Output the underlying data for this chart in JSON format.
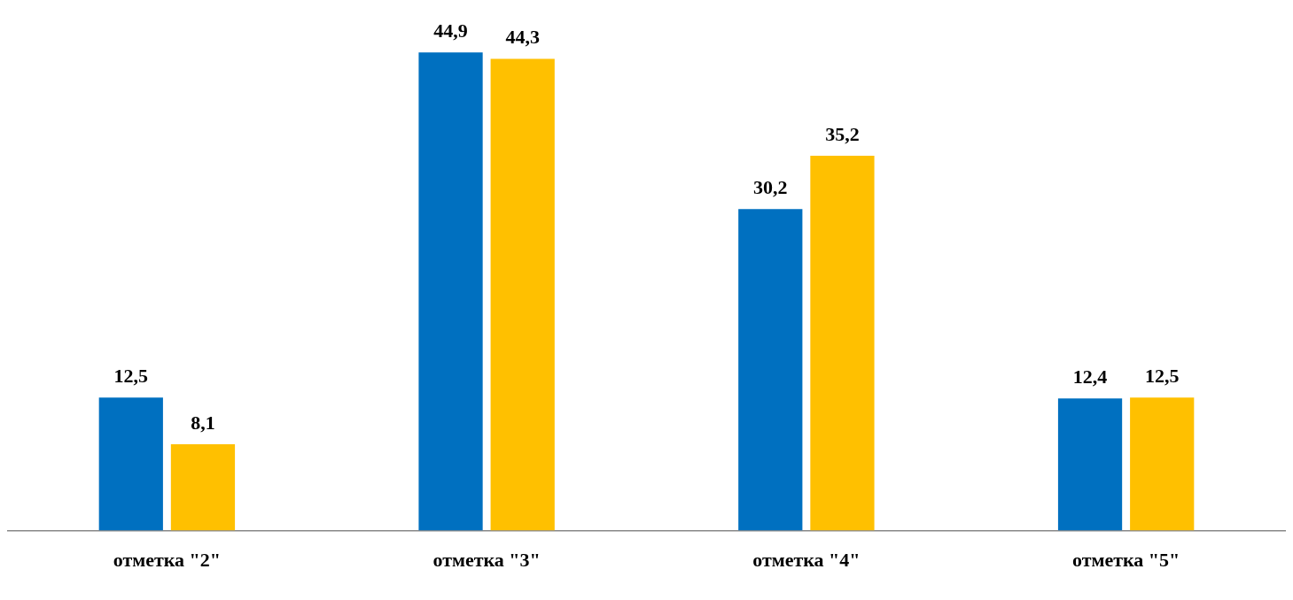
{
  "chart_data": {
    "type": "bar",
    "categories": [
      "отметка \"2\"",
      "отметка \"3\"",
      "отметка \"4\"",
      "отметка \"5\""
    ],
    "series": [
      {
        "color": "#0070c0",
        "values": [
          12.5,
          44.9,
          30.2,
          12.4
        ],
        "value_labels": [
          "12,5",
          "44,9",
          "30,2",
          "12,4"
        ]
      },
      {
        "color": "#ffc000",
        "values": [
          8.1,
          44.3,
          35.2,
          12.5
        ],
        "value_labels": [
          "8,1",
          "44,3",
          "35,2",
          "12,5"
        ]
      }
    ],
    "tick_labels": "x",
    "grid": false,
    "legend": false
  }
}
